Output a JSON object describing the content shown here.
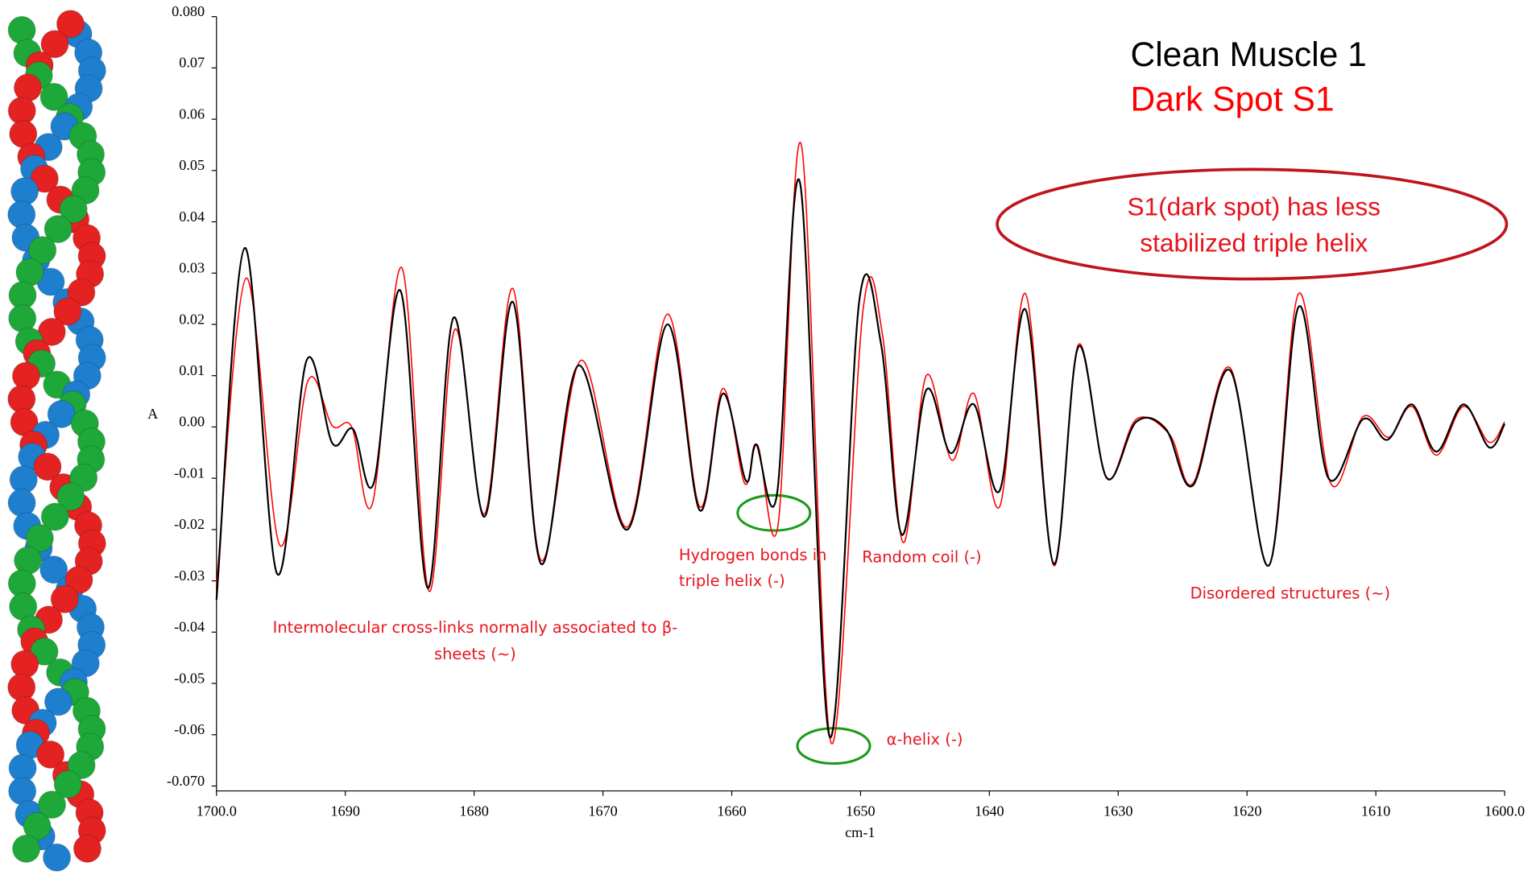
{
  "chart_data": {
    "type": "line",
    "x_label": "cm-1",
    "y_label": "A",
    "xlim": [
      1700,
      1600
    ],
    "ylim": [
      -0.07,
      0.08
    ],
    "xticks": [
      {
        "value": 1700,
        "label": "1700.0"
      },
      1690,
      1680,
      1670,
      1660,
      1650,
      1640,
      1630,
      1620,
      1610,
      {
        "value": 1600,
        "label": "1600.0"
      }
    ],
    "yticks": [
      {
        "value": 0.08,
        "label": "0.080"
      },
      0.07,
      0.06,
      0.05,
      0.04,
      0.03,
      0.02,
      0.01,
      {
        "value": 0,
        "label": "0.00"
      },
      -0.01,
      -0.02,
      -0.03,
      -0.04,
      -0.05,
      -0.06,
      {
        "value": -0.07,
        "label": "-0.070"
      }
    ],
    "series": [
      {
        "name": "Clean Muscle 1",
        "color": "#000000",
        "x": [
          1700,
          1697.8,
          1695.3,
          1693.0,
          1691.0,
          1689.4,
          1687.8,
          1685.7,
          1683.6,
          1681.6,
          1679.2,
          1677.0,
          1674.8,
          1671.9,
          1668.1,
          1665.0,
          1662.5,
          1660.7,
          1658.9,
          1658.1,
          1656.5,
          1654.7,
          1652.4,
          1650.1,
          1648.4,
          1646.8,
          1644.9,
          1643.0,
          1641.2,
          1639.2,
          1637.2,
          1635.0,
          1633.1,
          1630.9,
          1628.6,
          1626.3,
          1624.2,
          1621.3,
          1618.3,
          1616.0,
          1613.7,
          1611.0,
          1609.1,
          1607.2,
          1605.3,
          1603.2,
          1601.2,
          1600
        ],
        "values": [
          -0.0337,
          0.0349,
          -0.0286,
          0.013,
          -0.0032,
          -0.0004,
          -0.011,
          0.0265,
          -0.0314,
          0.0213,
          -0.0175,
          0.0244,
          -0.0267,
          0.012,
          -0.02,
          0.02,
          -0.0162,
          0.0065,
          -0.0105,
          -0.0034,
          -0.0133,
          0.0476,
          -0.0604,
          0.0246,
          0.016,
          -0.021,
          0.0072,
          -0.0051,
          0.0044,
          -0.0124,
          0.0229,
          -0.0267,
          0.0156,
          -0.0099,
          0.001,
          -0.0004,
          -0.0114,
          0.011,
          -0.027,
          0.0234,
          -0.0099,
          0.0015,
          -0.0025,
          0.0044,
          -0.0048,
          0.0044,
          -0.004,
          0.0006
        ]
      },
      {
        "name": "Dark Spot S1",
        "color": "#ff0000",
        "x": [
          1700,
          1697.7,
          1695.1,
          1692.9,
          1691.0,
          1689.5,
          1687.9,
          1685.6,
          1683.5,
          1681.5,
          1679.2,
          1677.0,
          1674.8,
          1671.7,
          1668.1,
          1665.0,
          1662.5,
          1660.7,
          1659.0,
          1658.0,
          1656.4,
          1654.6,
          1652.3,
          1649.8,
          1648.3,
          1646.7,
          1644.9,
          1642.9,
          1641.2,
          1639.2,
          1637.2,
          1635.0,
          1633.1,
          1630.9,
          1628.6,
          1626.0,
          1624.2,
          1621.3,
          1618.3,
          1616.0,
          1613.5,
          1611.0,
          1609.0,
          1607.2,
          1605.3,
          1603.2,
          1601.2,
          1600
        ],
        "values": [
          -0.031,
          0.029,
          -0.023,
          0.009,
          0.0002,
          0.0,
          -0.015,
          0.031,
          -0.032,
          0.019,
          -0.017,
          0.027,
          -0.026,
          0.013,
          -0.0195,
          0.022,
          -0.0155,
          0.0075,
          -0.011,
          -0.0035,
          -0.019,
          0.055,
          -0.0615,
          0.023,
          0.018,
          -0.0225,
          0.01,
          -0.0065,
          0.0065,
          -0.0155,
          0.026,
          -0.027,
          0.016,
          -0.01,
          0.0015,
          -0.0015,
          -0.011,
          0.0115,
          -0.027,
          0.026,
          -0.011,
          0.002,
          -0.002,
          0.004,
          -0.0055,
          0.004,
          -0.003,
          0.001
        ]
      }
    ],
    "annotations": [
      {
        "lines": [
          "Hydrogen bonds in",
          "triple helix (-)"
        ]
      },
      {
        "lines": [
          "Random coil (-)"
        ]
      },
      {
        "lines": [
          "Intermolecular cross-links normally associated to β-",
          "sheets (~)"
        ]
      },
      {
        "lines": [
          "α-helix (-)"
        ]
      },
      {
        "lines": [
          "Disordered structures (~)"
        ]
      },
      {
        "lines": [
          "S1(dark spot) has less",
          "stabilized  triple helix"
        ]
      }
    ]
  }
}
